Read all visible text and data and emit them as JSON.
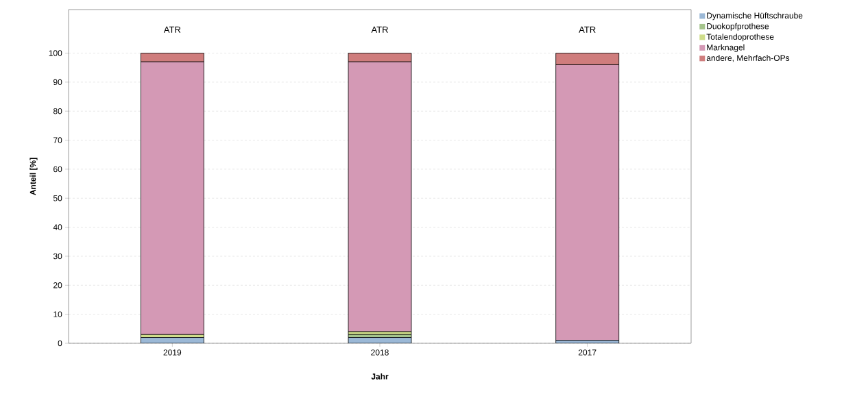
{
  "chart_data": {
    "type": "bar",
    "stacked": true,
    "xlabel": "Jahr",
    "ylabel": "Anteil [%]",
    "categories": [
      "2019",
      "2018",
      "2017"
    ],
    "series": [
      {
        "name": "Dynamische Hüftschraube",
        "color": "#9bb8d6",
        "values": [
          2,
          2,
          1
        ]
      },
      {
        "name": "Duokopfprothese",
        "color": "#a5c48c",
        "values": [
          0,
          1,
          0
        ]
      },
      {
        "name": "Totalendoprothese",
        "color": "#cfdd8a",
        "values": [
          1,
          1,
          0
        ]
      },
      {
        "name": "Marknagel",
        "color": "#d499b5",
        "values": [
          94,
          93,
          95
        ]
      },
      {
        "name": "andere, Mehrfach-OPs",
        "color": "#cf7d7d",
        "values": [
          3,
          3,
          4
        ]
      }
    ],
    "ylim": [
      0,
      115
    ],
    "yticks": [
      0,
      10,
      20,
      30,
      40,
      50,
      60,
      70,
      80,
      90,
      100
    ],
    "grid": "y",
    "legend": "top right",
    "annotations": [
      "ATR",
      "ATR",
      "ATR"
    ]
  }
}
